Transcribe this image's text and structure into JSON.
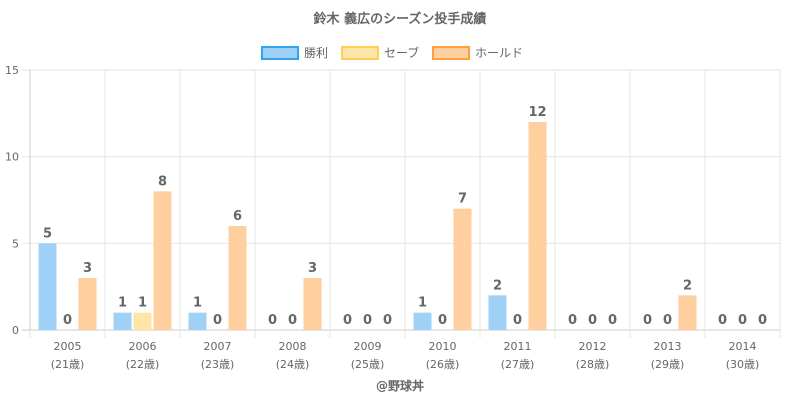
{
  "chart_data": {
    "type": "bar",
    "title": "鈴木 義広のシーズン投手成績",
    "categories": [
      "2005",
      "2006",
      "2007",
      "2008",
      "2009",
      "2010",
      "2011",
      "2012",
      "2013",
      "2014"
    ],
    "subcategories": [
      "(21歳)",
      "(22歳)",
      "(23歳)",
      "(24歳)",
      "(25歳)",
      "(26歳)",
      "(27歳)",
      "(28歳)",
      "(29歳)",
      "(30歳)"
    ],
    "series": [
      {
        "name": "勝利",
        "values": [
          5,
          1,
          1,
          0,
          0,
          1,
          2,
          0,
          0,
          0
        ],
        "color": "#9fd0f5",
        "border": "#36a2eb"
      },
      {
        "name": "セーブ",
        "values": [
          0,
          1,
          0,
          0,
          0,
          0,
          0,
          0,
          0,
          0
        ],
        "color": "#ffe6a8",
        "border": "#ffce56"
      },
      {
        "name": "ホールド",
        "values": [
          3,
          8,
          6,
          3,
          0,
          7,
          12,
          0,
          2,
          0
        ],
        "color": "#ffcf9f",
        "border": "#ff9f40"
      }
    ],
    "ylim": [
      0,
      15
    ],
    "yticks": [
      0,
      5,
      10,
      15
    ],
    "grid": true,
    "legend": "top",
    "credit": "@野球丼"
  }
}
